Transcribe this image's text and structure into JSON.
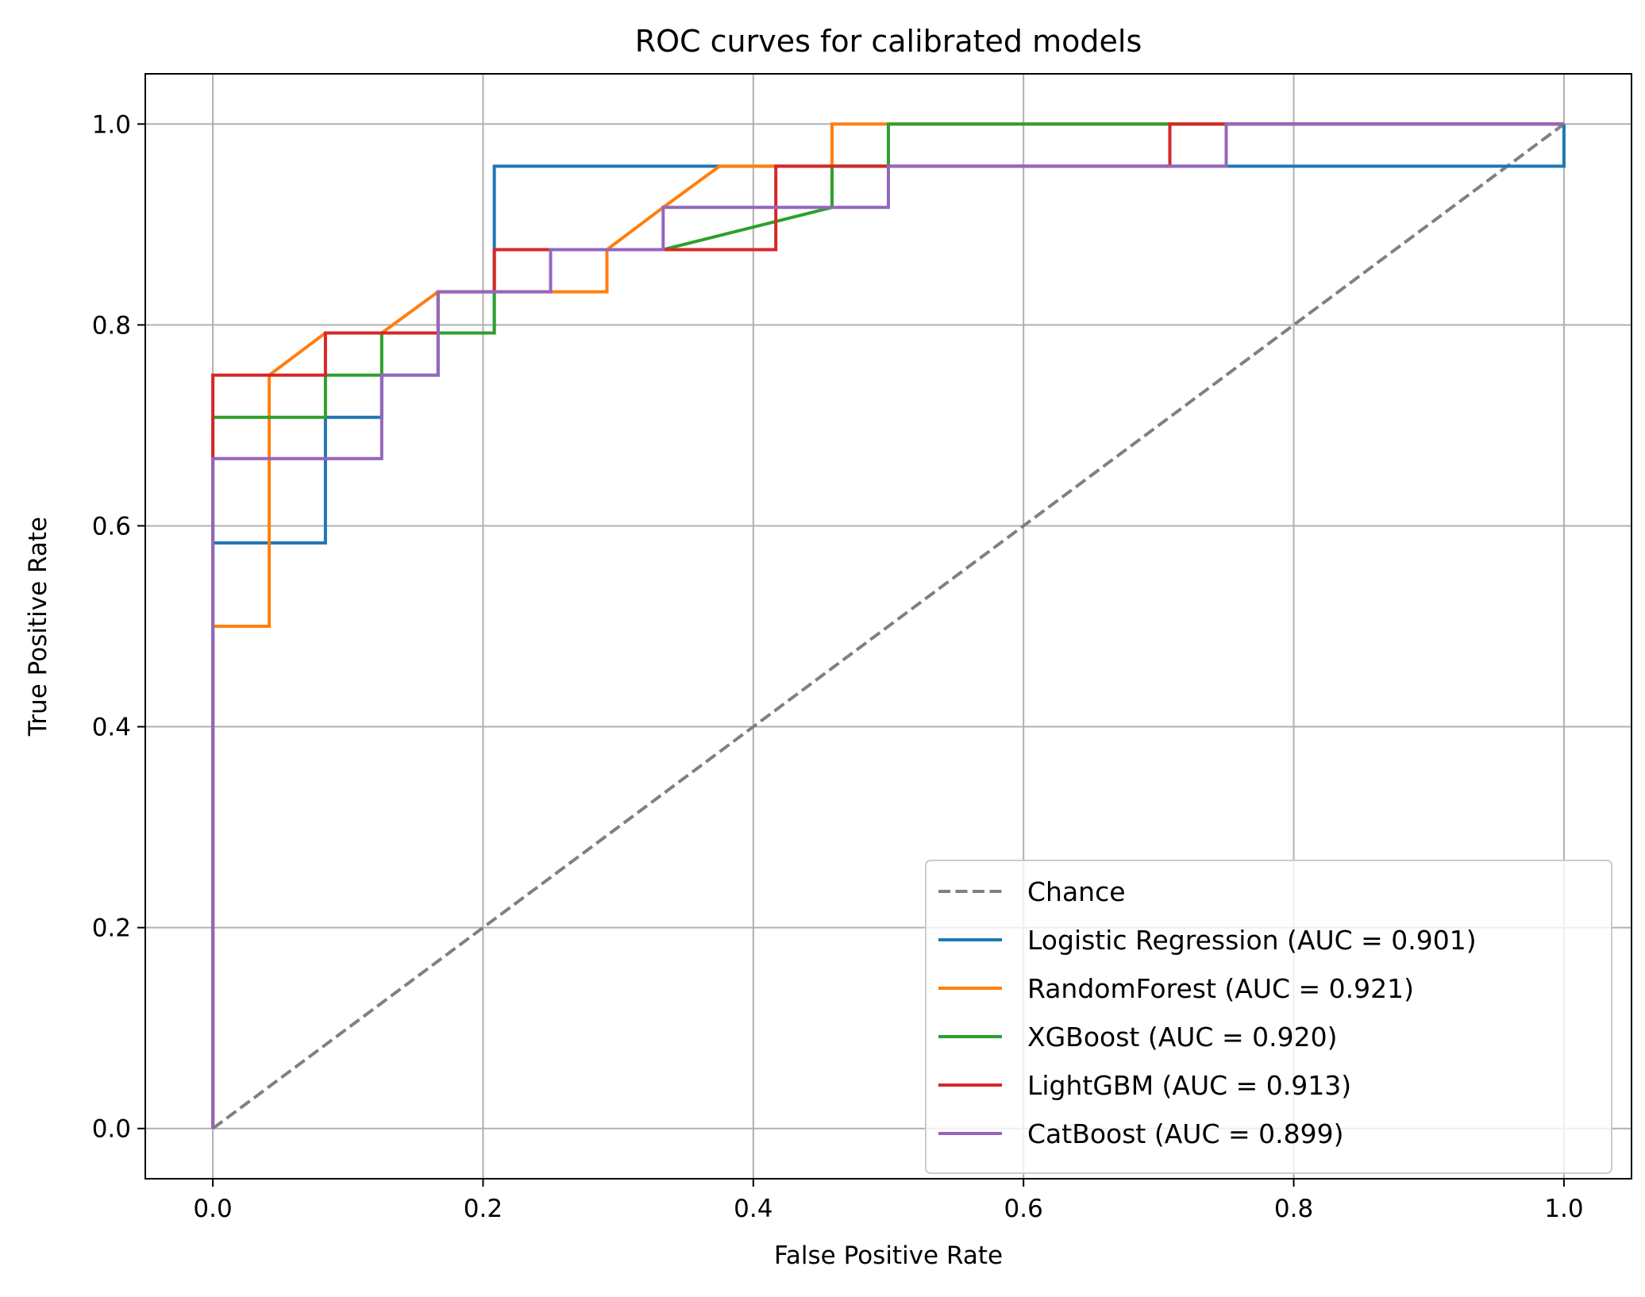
{
  "chart_data": {
    "type": "line",
    "title": "ROC curves for calibrated models",
    "xlabel": "False Positive Rate",
    "ylabel": "True Positive Rate",
    "xlim": [
      -0.05,
      1.05
    ],
    "ylim": [
      -0.05,
      1.05
    ],
    "xticks": [
      0.0,
      0.2,
      0.4,
      0.6,
      0.8,
      1.0
    ],
    "yticks": [
      0.0,
      0.2,
      0.4,
      0.6,
      0.8,
      1.0
    ],
    "xtick_labels": [
      "0.0",
      "0.2",
      "0.4",
      "0.6",
      "0.8",
      "1.0"
    ],
    "ytick_labels": [
      "0.0",
      "0.2",
      "0.4",
      "0.6",
      "0.8",
      "1.0"
    ],
    "grid": true,
    "legend_position": "lower-right",
    "series": [
      {
        "name": "Chance",
        "color": "#808080",
        "dashed": true,
        "x": [
          0,
          1
        ],
        "y": [
          0,
          1
        ]
      },
      {
        "name": "Logistic Regression (AUC = 0.901)",
        "color": "#1f77b4",
        "x": [
          0,
          0,
          0.0833,
          0.0833,
          0.125,
          0.125,
          0.1667,
          0.1667,
          0.2083,
          0.2083,
          0.75,
          0.75,
          1.0,
          1.0
        ],
        "y": [
          0,
          0.583,
          0.583,
          0.708,
          0.708,
          0.75,
          0.75,
          0.792,
          0.792,
          0.958,
          0.958,
          0.958,
          0.958,
          1.0
        ]
      },
      {
        "name": "RandomForest (AUC = 0.921)",
        "color": "#ff7f0e",
        "x": [
          0,
          0,
          0.0417,
          0.0417,
          0.0833,
          0.125,
          0.1667,
          0.25,
          0.2917,
          0.2917,
          0.3333,
          0.375,
          0.4583,
          0.4583,
          0.5,
          1.0
        ],
        "y": [
          0,
          0.5,
          0.5,
          0.75,
          0.792,
          0.792,
          0.833,
          0.833,
          0.833,
          0.875,
          0.917,
          0.958,
          0.958,
          1.0,
          1.0,
          1.0
        ]
      },
      {
        "name": "XGBoost (AUC = 0.920)",
        "color": "#2ca02c",
        "x": [
          0,
          0,
          0.0833,
          0.0833,
          0.125,
          0.125,
          0.2083,
          0.2083,
          0.3333,
          0.4583,
          0.4583,
          0.5,
          0.5,
          1.0
        ],
        "y": [
          0,
          0.708,
          0.708,
          0.75,
          0.75,
          0.792,
          0.792,
          0.875,
          0.875,
          0.917,
          0.958,
          0.958,
          1.0,
          1.0
        ]
      },
      {
        "name": "LightGBM (AUC = 0.913)",
        "color": "#d62728",
        "x": [
          0,
          0,
          0.0833,
          0.0833,
          0.1667,
          0.1667,
          0.2083,
          0.2083,
          0.4167,
          0.4167,
          0.7083,
          0.7083,
          1.0
        ],
        "y": [
          0,
          0.75,
          0.75,
          0.792,
          0.792,
          0.833,
          0.833,
          0.875,
          0.875,
          0.958,
          0.958,
          1.0,
          1.0
        ]
      },
      {
        "name": "CatBoost (AUC = 0.899)",
        "color": "#9467bd",
        "x": [
          0,
          0,
          0.125,
          0.125,
          0.1667,
          0.1667,
          0.25,
          0.25,
          0.3333,
          0.3333,
          0.5,
          0.5,
          0.75,
          0.75,
          1.0
        ],
        "y": [
          0,
          0.667,
          0.667,
          0.75,
          0.75,
          0.833,
          0.833,
          0.875,
          0.875,
          0.917,
          0.917,
          0.958,
          0.958,
          1.0,
          1.0
        ]
      }
    ]
  }
}
